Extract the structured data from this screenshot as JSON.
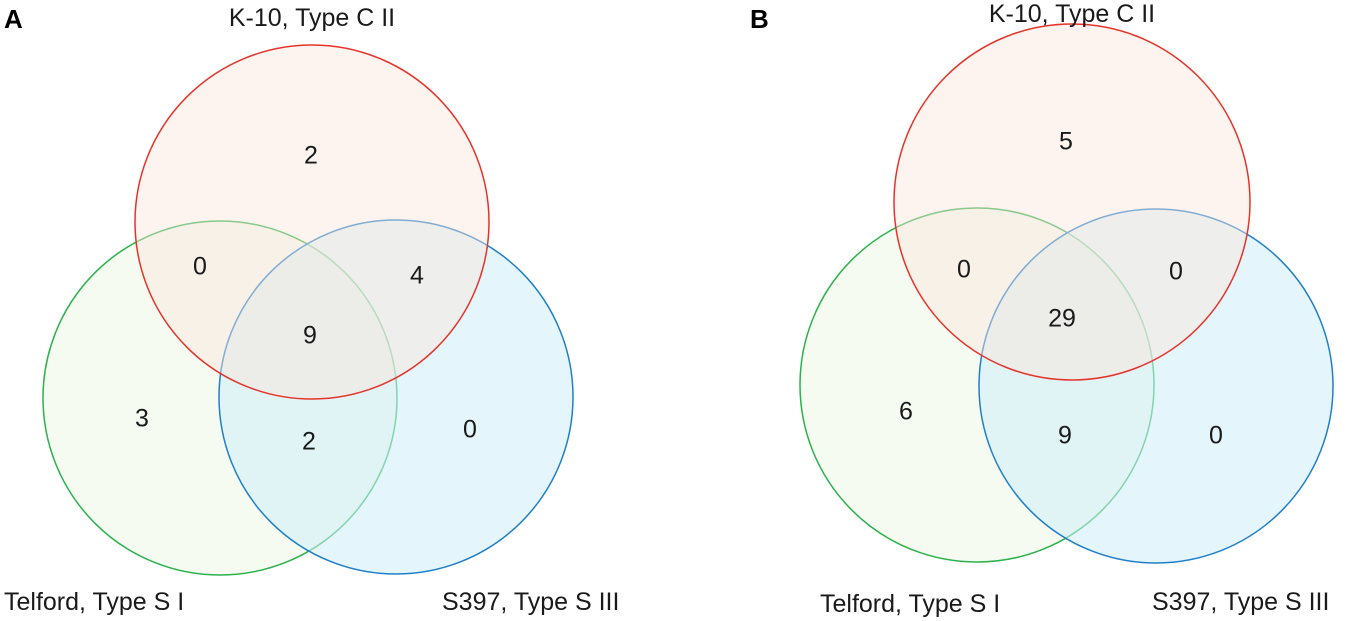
{
  "panels": [
    {
      "letter": "A",
      "sets": {
        "top": {
          "label": "K-10, Type C II",
          "color": "#e5332a",
          "fill": "#fbe4dc"
        },
        "left": {
          "label": "Telford, Type S I",
          "color": "#2bb24c",
          "fill": "#eef7e8"
        },
        "right": {
          "label": "S397, Type S III",
          "color": "#1f7fc8",
          "fill": "#cdeef8"
        }
      },
      "regions": {
        "top_only": "2",
        "top_left": "0",
        "top_right": "4",
        "all": "9",
        "left_only": "3",
        "left_right": "2",
        "right_only": "0"
      }
    },
    {
      "letter": "B",
      "sets": {
        "top": {
          "label": "K-10, Type C II",
          "color": "#e5332a",
          "fill": "#fbe4dc"
        },
        "left": {
          "label": "Telford, Type S I",
          "color": "#2bb24c",
          "fill": "#eef7e8"
        },
        "right": {
          "label": "S397, Type S III",
          "color": "#1f7fc8",
          "fill": "#cdeef8"
        }
      },
      "regions": {
        "top_only": "5",
        "top_left": "0",
        "top_right": "0",
        "all": "29",
        "left_only": "6",
        "left_right": "9",
        "right_only": "0"
      }
    }
  ]
}
